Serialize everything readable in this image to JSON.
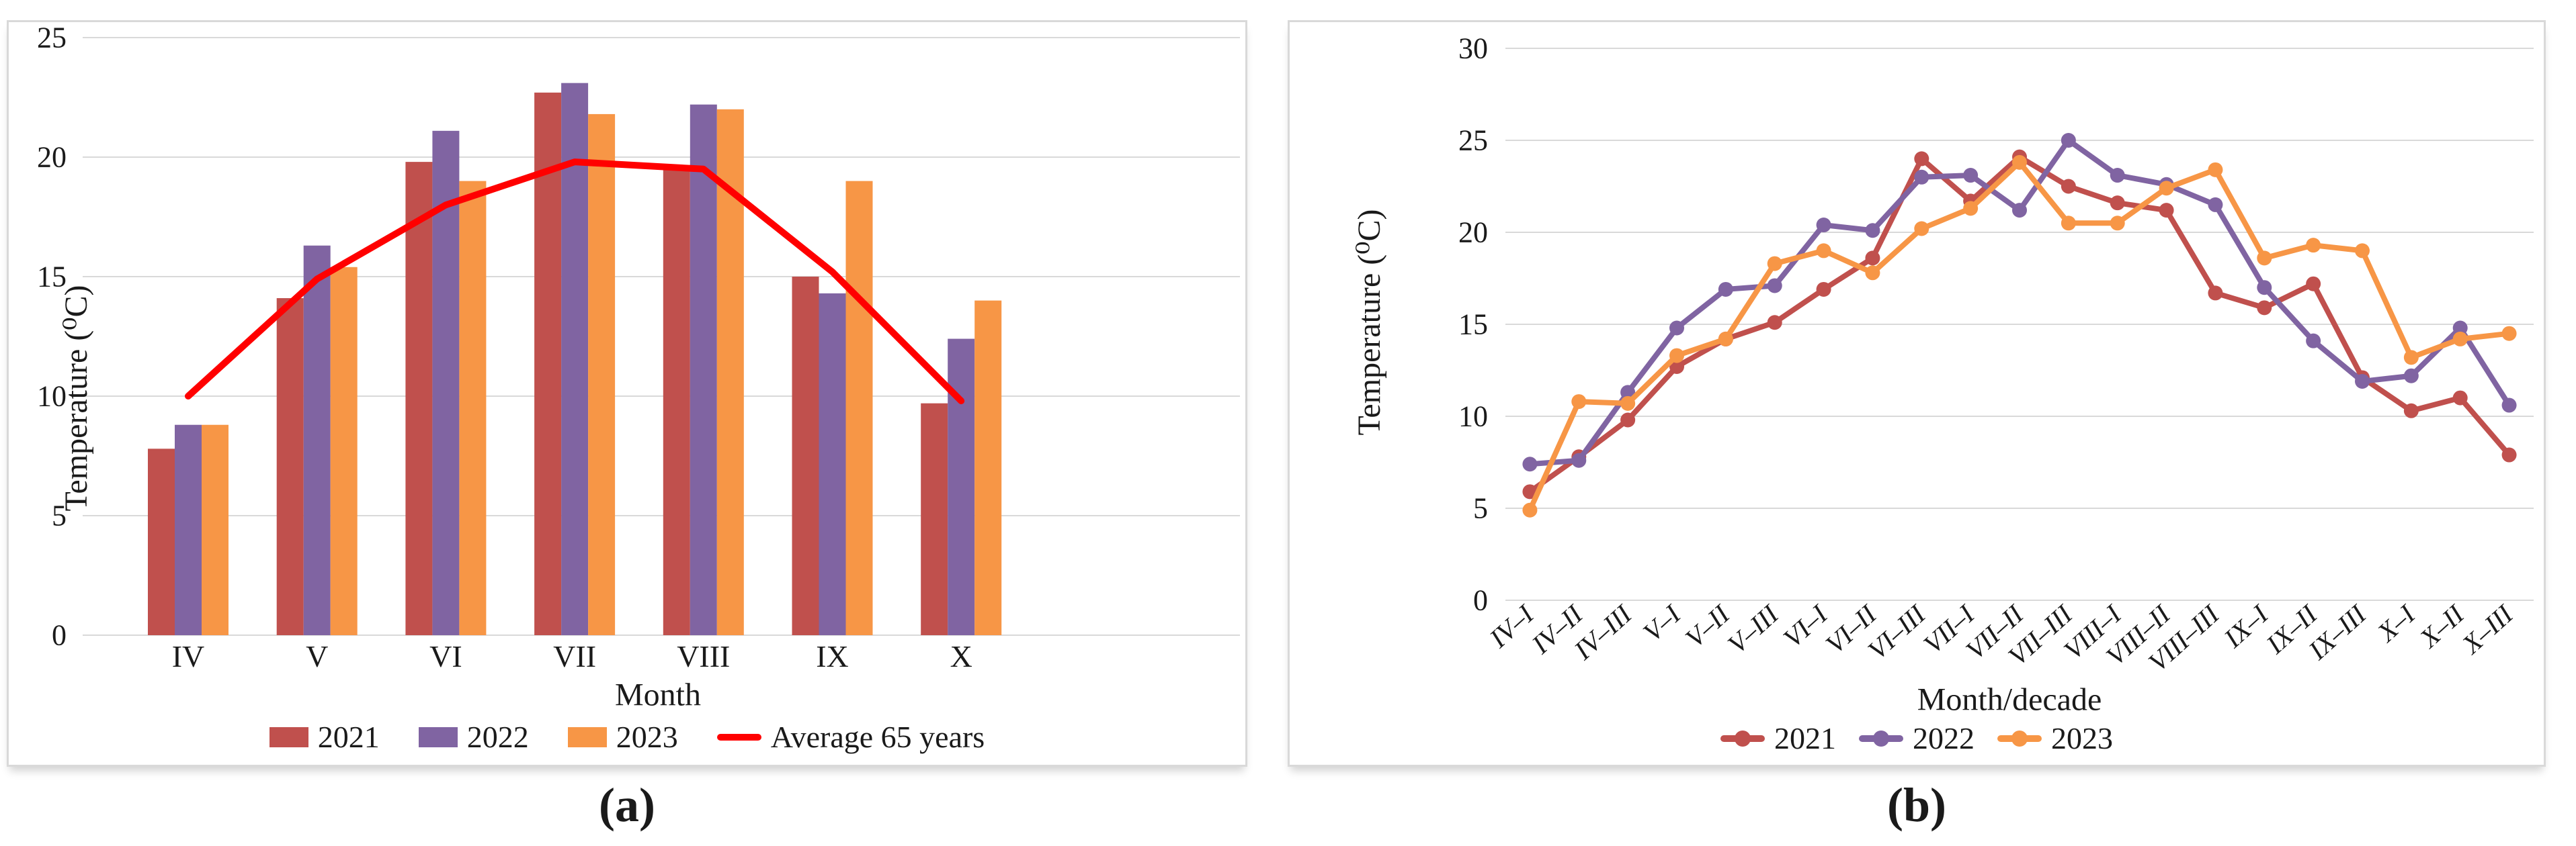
{
  "figure": {
    "caption_a": "(a)",
    "caption_b": "(b)"
  },
  "colors": {
    "year_2021": "#C0504D",
    "year_2022": "#8064A2",
    "year_2023": "#F79646",
    "average_line": "#FF0000",
    "gridline": "#D9D9D9",
    "text": "#1a1a1a",
    "panel_border": "#D9D9D9"
  },
  "chart_data": [
    {
      "type": "bar",
      "title": "",
      "xlabel": "Month",
      "ylabel": "Temperature (⁰C)",
      "ylim": [
        0,
        25
      ],
      "ytick_step": 5,
      "yticks": [
        0,
        5,
        10,
        15,
        20,
        25
      ],
      "grid": "horizontal",
      "legend_position": "bottom",
      "categories": [
        "IV",
        "V",
        "VI",
        "VII",
        "VIII",
        "IX",
        "X"
      ],
      "series": [
        {
          "name": "2021",
          "kind": "bar",
          "color": "#C0504D",
          "values": [
            7.8,
            14.1,
            19.8,
            22.7,
            19.5,
            15.0,
            9.7
          ]
        },
        {
          "name": "2022",
          "kind": "bar",
          "color": "#8064A2",
          "values": [
            8.8,
            16.3,
            21.1,
            23.1,
            22.2,
            14.3,
            12.4
          ]
        },
        {
          "name": "2023",
          "kind": "bar",
          "color": "#F79646",
          "values": [
            8.8,
            15.4,
            19.0,
            21.8,
            22.0,
            19.0,
            14.0
          ]
        },
        {
          "name": "Average 65 years",
          "kind": "line",
          "color": "#FF0000",
          "values": [
            10.0,
            14.9,
            18.0,
            19.8,
            19.5,
            15.2,
            9.8
          ]
        }
      ]
    },
    {
      "type": "line",
      "title": "",
      "xlabel": "Month/decade",
      "ylabel": "Temperature (⁰C)",
      "ylim": [
        0,
        30
      ],
      "ytick_step": 5,
      "yticks": [
        0,
        5,
        10,
        15,
        20,
        25,
        30
      ],
      "grid": "horizontal",
      "legend_position": "bottom",
      "categories": [
        "IV–I",
        "IV–II",
        "IV–III",
        "V–I",
        "V–II",
        "V–III",
        "VI–I",
        "VI–II",
        "VI–III",
        "VII–I",
        "VII–II",
        "VII–III",
        "VIII–I",
        "VIII–II",
        "VIII–III",
        "IX–I",
        "IX–II",
        "IX–III",
        "X–I",
        "X–II",
        "X–III"
      ],
      "series": [
        {
          "name": "2021",
          "kind": "line",
          "color": "#C0504D",
          "values": [
            5.9,
            7.8,
            9.8,
            12.7,
            14.2,
            15.1,
            16.9,
            18.6,
            24.0,
            21.7,
            24.1,
            22.5,
            21.6,
            21.2,
            16.7,
            15.9,
            17.2,
            12.1,
            10.3,
            11.0,
            7.9
          ]
        },
        {
          "name": "2022",
          "kind": "line",
          "color": "#8064A2",
          "values": [
            7.4,
            7.6,
            11.3,
            14.8,
            16.9,
            17.1,
            20.4,
            20.1,
            23.0,
            23.1,
            21.2,
            25.0,
            23.1,
            22.6,
            21.5,
            17.0,
            14.1,
            11.9,
            12.2,
            14.8,
            10.6
          ]
        },
        {
          "name": "2023",
          "kind": "line",
          "color": "#F79646",
          "values": [
            4.9,
            10.8,
            10.7,
            13.3,
            14.2,
            18.3,
            19.0,
            17.8,
            20.2,
            21.3,
            23.8,
            20.5,
            20.5,
            22.4,
            23.4,
            18.6,
            19.3,
            19.0,
            13.2,
            14.2,
            14.5
          ]
        }
      ]
    }
  ]
}
